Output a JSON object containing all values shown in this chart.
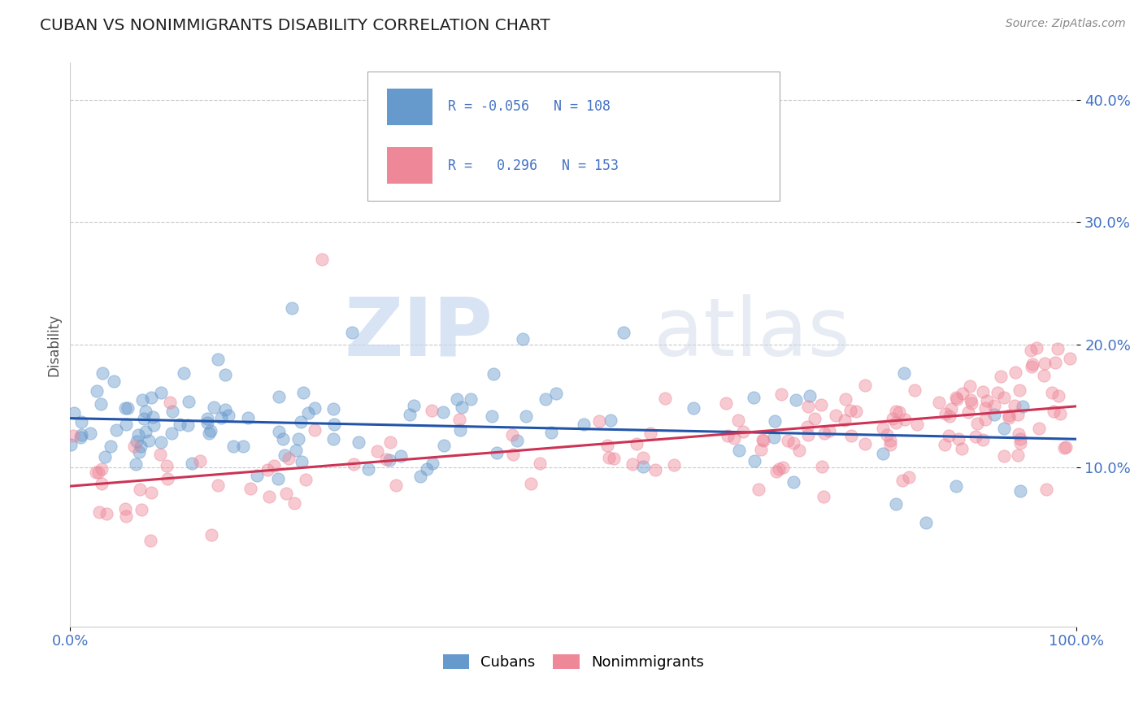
{
  "title": "CUBAN VS NONIMMIGRANTS DISABILITY CORRELATION CHART",
  "source": "Source: ZipAtlas.com",
  "ylabel": "Disability",
  "xlim": [
    0,
    100
  ],
  "ylim": [
    -3,
    43
  ],
  "yticks": [
    10,
    20,
    30,
    40
  ],
  "ytick_labels": [
    "10.0%",
    "20.0%",
    "30.0%",
    "40.0%"
  ],
  "xtick_labels": [
    "0.0%",
    "100.0%"
  ],
  "cuban_color": "#6699cc",
  "cuban_line_color": "#2255aa",
  "nonimmigrant_color": "#ee8899",
  "nonimmigrant_line_color": "#cc3355",
  "cuban_R": -0.056,
  "cuban_N": 108,
  "nonimmigrant_R": 0.296,
  "nonimmigrant_N": 153,
  "legend_label_cuban": "Cubans",
  "legend_label_nonimmigrant": "Nonimmigrants",
  "watermark_zip": "ZIP",
  "watermark_atlas": "atlas",
  "background_color": "#ffffff",
  "grid_color": "#bbbbbb",
  "title_color": "#222222",
  "axis_tick_color": "#4472c4",
  "R_color": "#4472c4",
  "legend_box_color": "#aaaaaa"
}
